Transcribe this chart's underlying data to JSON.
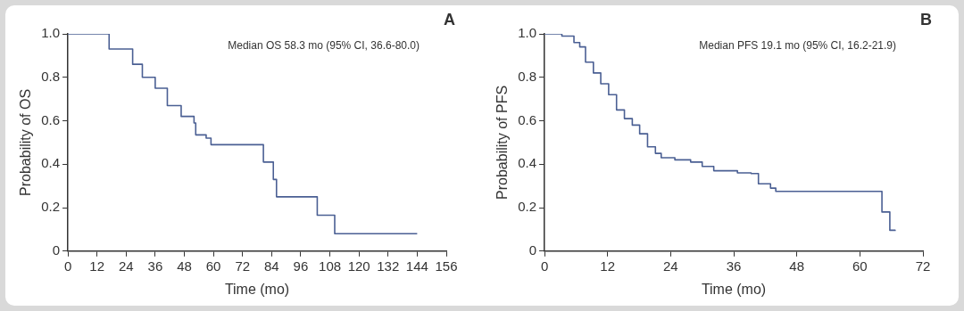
{
  "chart_data": [
    {
      "type": "step",
      "xlabel": "Time (mo)",
      "ylabel": "Probability of OS",
      "annotations": [
        "Median OS 58.3 mo (95% CI, 36.6-80.0)",
        "A"
      ],
      "xlim": [
        0,
        156
      ],
      "xticks": [
        0,
        12,
        24,
        36,
        48,
        60,
        72,
        84,
        96,
        108,
        120,
        132,
        144,
        156
      ],
      "ylim": [
        0,
        1
      ],
      "yticks": [
        0,
        0.2,
        0.4,
        0.6,
        0.8,
        {
          "value": 1,
          "label": "1.0"
        }
      ],
      "grid": false,
      "legend": false,
      "series": [
        {
          "color": "#4a5f93",
          "x": [
            0,
            6.7,
            17,
            26.7,
            30.7,
            36,
            41,
            46.7,
            52,
            52.7,
            57,
            59,
            80.6,
            84.7,
            86,
            102.8,
            110,
            144
          ],
          "values": [
            1,
            1,
            0.93,
            0.86,
            0.8,
            0.75,
            0.67,
            0.62,
            0.59,
            0.535,
            0.52,
            0.49,
            0.41,
            0.33,
            0.25,
            0.165,
            0.08,
            0.08
          ]
        }
      ]
    },
    {
      "type": "step",
      "xlabel": "Time (mo)",
      "ylabel": "Probability of PFS",
      "annotations": [
        "Median PFS 19.1 mo (95% CI, 16.2-21.9)",
        "B"
      ],
      "xlim": [
        0,
        72
      ],
      "xticks": [
        0,
        12,
        24,
        36,
        48,
        60,
        72
      ],
      "ylim": [
        0,
        1
      ],
      "yticks": [
        0,
        0.2,
        0.4,
        0.6,
        0.8,
        {
          "value": 1,
          "label": "1.0"
        }
      ],
      "grid": false,
      "legend": false,
      "series": [
        {
          "color": "#4a5f93",
          "x": [
            0,
            3.3,
            5.6,
            6.7,
            7.8,
            9.3,
            10.7,
            12.2,
            13.7,
            15.2,
            16.7,
            18.1,
            19.6,
            21.1,
            22.2,
            24.8,
            27.8,
            30,
            32.2,
            36.7,
            39.3,
            40.7,
            43,
            44,
            64.2,
            65.7,
            66.7
          ],
          "values": [
            1,
            0.99,
            0.96,
            0.94,
            0.87,
            0.82,
            0.77,
            0.72,
            0.65,
            0.61,
            0.58,
            0.54,
            0.48,
            0.45,
            0.43,
            0.42,
            0.41,
            0.39,
            0.37,
            0.36,
            0.357,
            0.31,
            0.29,
            0.275,
            0.18,
            0.096,
            0.093
          ]
        }
      ]
    }
  ]
}
